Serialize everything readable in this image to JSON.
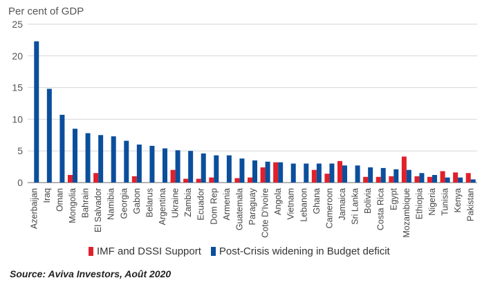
{
  "chart_data": {
    "type": "bar",
    "ylabel": "Per cent of GDP",
    "ylim": [
      0,
      25
    ],
    "yticks": [
      0,
      5,
      10,
      15,
      20,
      25
    ],
    "grid": true,
    "legend_position": "bottom",
    "categories": [
      "Azerbaijan",
      "Iraq",
      "Oman",
      "Mongolia",
      "Bahrain",
      "El Salvador",
      "Namibia",
      "Georgia",
      "Gabon",
      "Belarus",
      "Argentina",
      "Ukraine",
      "Zambia",
      "Ecuador",
      "Dom Rep",
      "Armenia",
      "Guatemala",
      "Paraguay",
      "Cote D'Ivoire",
      "Angola",
      "Vietnam",
      "Lebanon",
      "Ghana",
      "Cameroon",
      "Jamaica",
      "Sri Lanka",
      "Bolivia",
      "Costa Rica",
      "Egypt",
      "Mozambique",
      "Ethiopia",
      "Nigeria",
      "Tunisia",
      "Kenya",
      "Pakistan"
    ],
    "series": [
      {
        "name": "IMF and DSSI Support",
        "color": "#e0202b",
        "values": [
          0,
          0,
          0,
          1.2,
          0,
          1.5,
          0,
          0,
          1.0,
          0,
          0,
          2.0,
          0.6,
          0.6,
          0.8,
          0,
          0.7,
          0.8,
          2.4,
          3.2,
          0,
          0,
          2.0,
          1.4,
          3.4,
          0,
          0.9,
          0.9,
          1.0,
          4.1,
          1.0,
          0.9,
          1.8,
          1.6,
          1.5
        ]
      },
      {
        "name": "Post-Crisis widening in Budget deficit",
        "color": "#0b4f9c",
        "values": [
          22.3,
          14.8,
          10.7,
          8.5,
          7.8,
          7.5,
          7.3,
          6.6,
          6.0,
          5.8,
          5.4,
          5.1,
          5.0,
          4.6,
          4.3,
          4.3,
          3.8,
          3.5,
          3.3,
          3.2,
          3.0,
          3.0,
          3.0,
          3.0,
          2.7,
          2.7,
          2.4,
          2.3,
          2.1,
          2.0,
          1.5,
          1.2,
          0.8,
          0.8,
          0.5
        ]
      }
    ]
  },
  "source": "Source: Aviva Investors, Août 2020"
}
